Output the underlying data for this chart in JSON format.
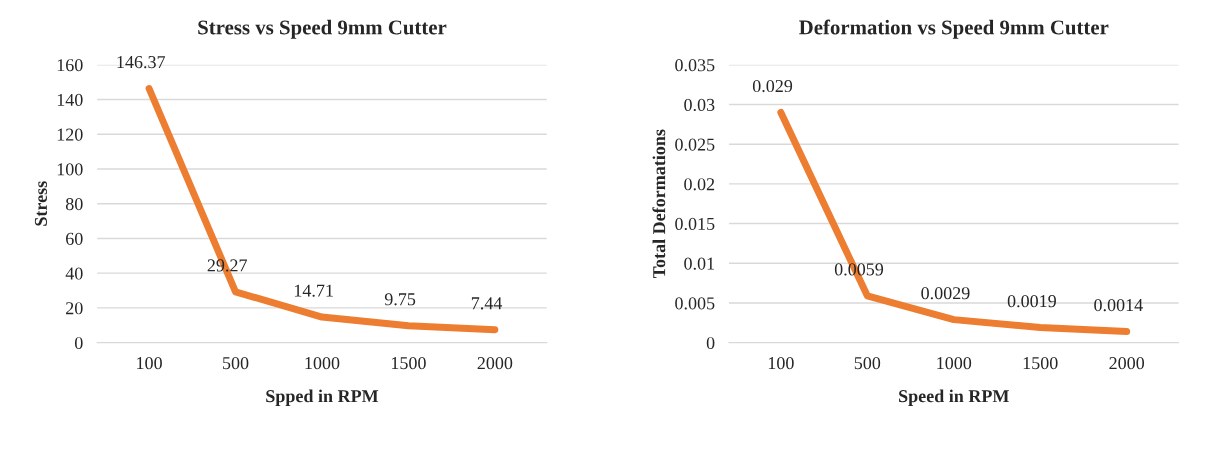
{
  "chart_data": [
    {
      "type": "line",
      "title": "Stress vs Speed 9mm Cutter",
      "xlabel": "Spped in RPM",
      "ylabel": "Stress",
      "categories": [
        "100",
        "500",
        "1000",
        "1500",
        "2000"
      ],
      "series": [
        {
          "color": "#ed7d31",
          "values": [
            146.37,
            29.27,
            14.71,
            9.75,
            7.44
          ]
        }
      ],
      "ylim": [
        0,
        160
      ],
      "yticks": [
        0,
        20,
        40,
        60,
        80,
        100,
        120,
        140,
        160
      ],
      "grid": "y",
      "data_labels": true,
      "legend": false,
      "marker": "none",
      "line_style": "solid"
    },
    {
      "type": "line",
      "title": "Deformation vs Speed 9mm Cutter",
      "xlabel": "Speed in RPM",
      "ylabel": "Total Deformations",
      "categories": [
        "100",
        "500",
        "1000",
        "1500",
        "2000"
      ],
      "series": [
        {
          "color": "#ed7d31",
          "values": [
            0.029,
            0.0059,
            0.0029,
            0.0019,
            0.0014
          ]
        }
      ],
      "ylim": [
        0,
        0.035
      ],
      "yticks": [
        0,
        0.005,
        0.01,
        0.015,
        0.02,
        0.025,
        0.03,
        0.035
      ],
      "grid": "y",
      "data_labels": true,
      "legend": false,
      "marker": "none",
      "line_style": "solid"
    }
  ]
}
